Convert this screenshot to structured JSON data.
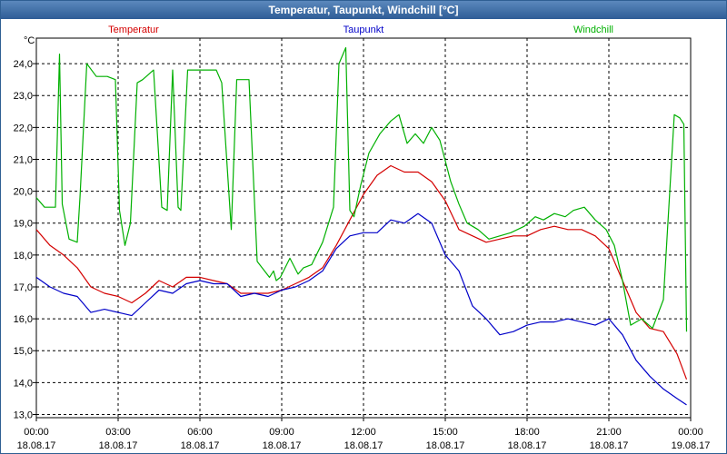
{
  "window": {
    "title": "Temperatur, Taupunkt, Windchill [°C]"
  },
  "colors": {
    "temperatur": "#d40000",
    "taupunkt": "#0000c8",
    "windchill": "#00b000"
  },
  "chart_data": {
    "type": "line",
    "title": "Temperatur, Taupunkt, Windchill [°C]",
    "ylabel": "°C",
    "xlabel": "",
    "ylim": [
      12.9,
      24.8
    ],
    "xlim": [
      0,
      24
    ],
    "grid": true,
    "y_ticks": [
      "13,0",
      "14,0",
      "15,0",
      "16,0",
      "17,0",
      "18,0",
      "19,0",
      "20,0",
      "21,0",
      "22,0",
      "23,0",
      "24,0"
    ],
    "x_ticks": [
      {
        "time": "00:00",
        "date": "18.08.17"
      },
      {
        "time": "03:00",
        "date": "18.08.17"
      },
      {
        "time": "06:00",
        "date": "18.08.17"
      },
      {
        "time": "09:00",
        "date": "18.08.17"
      },
      {
        "time": "12:00",
        "date": "18.08.17"
      },
      {
        "time": "15:00",
        "date": "18.08.17"
      },
      {
        "time": "18:00",
        "date": "18.08.17"
      },
      {
        "time": "21:00",
        "date": "18.08.17"
      },
      {
        "time": "00:00",
        "date": "19.08.17"
      }
    ],
    "series": [
      {
        "name": "Temperatur",
        "x": [
          0,
          0.5,
          1,
          1.5,
          2,
          2.5,
          3,
          3.5,
          4,
          4.5,
          5,
          5.5,
          6,
          6.5,
          7,
          7.5,
          8,
          8.5,
          9,
          9.5,
          10,
          10.5,
          11,
          11.5,
          12,
          12.5,
          13,
          13.5,
          14,
          14.5,
          15,
          15.5,
          16,
          16.5,
          17,
          17.5,
          18,
          18.5,
          19,
          19.5,
          20,
          20.5,
          21,
          21.5,
          22,
          22.5,
          23,
          23.5,
          23.85
        ],
        "y": [
          18.8,
          18.3,
          18.0,
          17.6,
          17.0,
          16.8,
          16.7,
          16.5,
          16.8,
          17.2,
          17.0,
          17.3,
          17.3,
          17.2,
          17.1,
          16.8,
          16.8,
          16.8,
          16.9,
          17.1,
          17.3,
          17.6,
          18.3,
          19.1,
          19.9,
          20.5,
          20.8,
          20.6,
          20.6,
          20.3,
          19.7,
          18.8,
          18.6,
          18.4,
          18.5,
          18.6,
          18.6,
          18.8,
          18.9,
          18.8,
          18.8,
          18.6,
          18.2,
          17.2,
          16.2,
          15.7,
          15.6,
          14.9,
          14.1
        ]
      },
      {
        "name": "Taupunkt",
        "x": [
          0,
          0.5,
          1,
          1.5,
          2,
          2.5,
          3,
          3.5,
          4,
          4.5,
          5,
          5.5,
          6,
          6.5,
          7,
          7.5,
          8,
          8.5,
          9,
          9.5,
          10,
          10.5,
          11,
          11.5,
          12,
          12.5,
          13,
          13.5,
          14,
          14.5,
          15,
          15.5,
          16,
          16.5,
          17,
          17.5,
          18,
          18.5,
          19,
          19.5,
          20,
          20.5,
          21,
          21.5,
          22,
          22.5,
          23,
          23.5,
          23.85
        ],
        "y": [
          17.3,
          17.0,
          16.8,
          16.7,
          16.2,
          16.3,
          16.2,
          16.1,
          16.5,
          16.9,
          16.8,
          17.1,
          17.2,
          17.1,
          17.1,
          16.7,
          16.8,
          16.7,
          16.9,
          17.0,
          17.2,
          17.5,
          18.2,
          18.6,
          18.7,
          18.7,
          19.1,
          19.0,
          19.3,
          19.0,
          18.0,
          17.5,
          16.4,
          16.0,
          15.5,
          15.6,
          15.8,
          15.9,
          15.9,
          16.0,
          15.9,
          15.8,
          16.0,
          15.5,
          14.7,
          14.2,
          13.8,
          13.5,
          13.3
        ]
      },
      {
        "name": "Windchill",
        "x": [
          0,
          0.3,
          0.7,
          0.85,
          0.95,
          1.2,
          1.5,
          1.6,
          1.85,
          2.2,
          2.6,
          2.9,
          3.05,
          3.25,
          3.45,
          3.7,
          3.9,
          4.3,
          4.6,
          4.8,
          5.0,
          5.2,
          5.3,
          5.55,
          5.85,
          6.2,
          6.6,
          6.8,
          7.15,
          7.35,
          7.6,
          7.8,
          8.1,
          8.55,
          8.7,
          8.8,
          8.95,
          9.3,
          9.6,
          9.8,
          10.1,
          10.5,
          10.9,
          11.1,
          11.35,
          11.5,
          11.65,
          11.9,
          12.2,
          12.6,
          13.0,
          13.3,
          13.6,
          13.9,
          14.2,
          14.5,
          14.8,
          15.2,
          15.5,
          15.8,
          16.2,
          16.6,
          17.0,
          17.4,
          17.9,
          18.3,
          18.6,
          19.0,
          19.4,
          19.7,
          20.1,
          20.5,
          20.9,
          21.2,
          21.5,
          21.8,
          22.2,
          22.6,
          23.0,
          23.4,
          23.6,
          23.75,
          23.85
        ],
        "y": [
          19.8,
          19.5,
          19.5,
          24.3,
          19.6,
          18.5,
          18.4,
          19.8,
          24.0,
          23.6,
          23.6,
          23.5,
          19.4,
          18.3,
          19.0,
          23.4,
          23.5,
          23.8,
          19.5,
          19.4,
          23.8,
          19.5,
          19.4,
          23.8,
          23.8,
          23.8,
          23.8,
          23.4,
          18.8,
          23.5,
          23.5,
          23.5,
          17.8,
          17.3,
          17.5,
          17.2,
          17.3,
          17.9,
          17.4,
          17.6,
          17.7,
          18.4,
          19.5,
          24.0,
          24.5,
          19.4,
          19.2,
          20.2,
          21.2,
          21.8,
          22.2,
          22.4,
          21.5,
          21.8,
          21.5,
          22.0,
          21.6,
          20.3,
          19.6,
          19.0,
          18.8,
          18.5,
          18.6,
          18.7,
          18.9,
          19.2,
          19.1,
          19.3,
          19.2,
          19.4,
          19.5,
          19.1,
          18.8,
          18.3,
          17.2,
          15.8,
          16.0,
          15.7,
          16.6,
          22.4,
          22.3,
          22.1,
          15.6
        ]
      }
    ]
  }
}
